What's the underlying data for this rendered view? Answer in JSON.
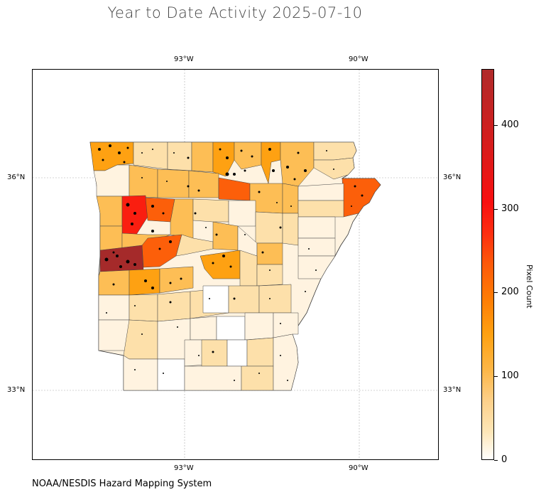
{
  "title": "Year to Date Activity 2025-07-10",
  "credit": "NOAA/NESDIS Hazard Mapping System",
  "lon_labels": [
    "93°W",
    "90°W"
  ],
  "lat_labels": [
    "36°N",
    "33°N"
  ],
  "colorbar": {
    "label": "Pixel Count",
    "ticks": [
      "0",
      "100",
      "200",
      "300",
      "400"
    ],
    "range": [
      0,
      465
    ],
    "colors": {
      "low": "#ffffff",
      "mid": "#fea112",
      "high": "#b02a2a"
    }
  },
  "regions": {
    "state": "Arkansas",
    "highlight_colors": {
      "extreme": "#a52a2a",
      "very_high": "#fa1e10",
      "high": "#fc5f0a",
      "elevated": "#fea112",
      "moderate": "#fdbe55",
      "low": "#fde0aa",
      "very_low": "#fff3e0"
    }
  }
}
